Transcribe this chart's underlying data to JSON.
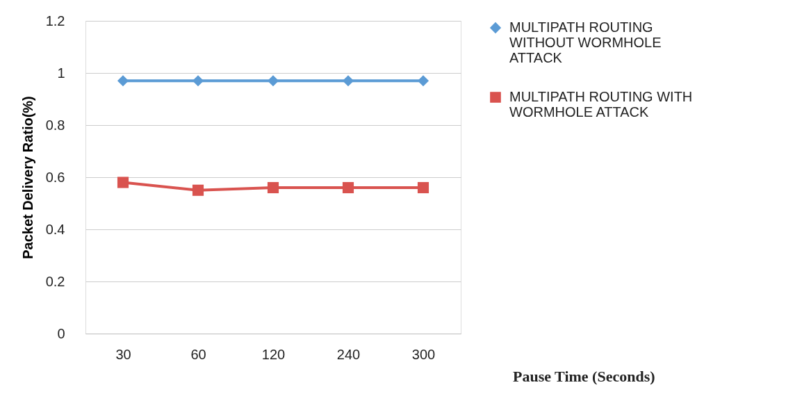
{
  "chart_data": {
    "type": "line",
    "categories": [
      "30",
      "60",
      "120",
      "240",
      "300"
    ],
    "xlabel": "Pause Time (Seconds)",
    "ylabel": "Packet Delivery Ratio(%)",
    "ylim": [
      0,
      1.2
    ],
    "yticks": [
      0,
      0.2,
      0.4,
      0.6,
      0.8,
      1,
      1.2
    ],
    "grid": "y",
    "legend": "right",
    "series": [
      {
        "name": "MULTIPATH ROUTING WITHOUT WORMHOLE ATTACK",
        "color": "#5b9bd5",
        "marker": "diamond",
        "values": [
          0.97,
          0.97,
          0.97,
          0.97,
          0.97
        ]
      },
      {
        "name": "MULTIPATH ROUTING WITH WORMHOLE ATTACK",
        "color": "#d9534f",
        "marker": "square",
        "values": [
          0.58,
          0.55,
          0.56,
          0.56,
          0.56
        ]
      }
    ]
  }
}
